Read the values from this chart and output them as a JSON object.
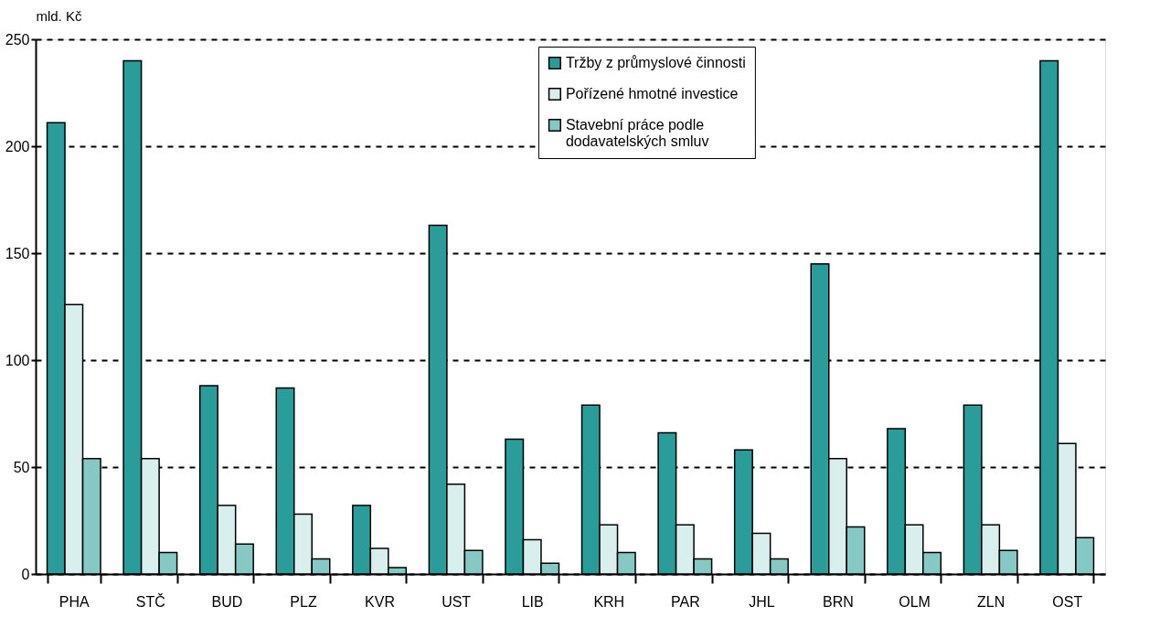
{
  "chart_data": {
    "type": "bar",
    "ylabel": "mld. Kč",
    "categories": [
      "PHA",
      "STČ",
      "BUD",
      "PLZ",
      "KVR",
      "UST",
      "LIB",
      "KRH",
      "PAR",
      "JHL",
      "BRN",
      "OLM",
      "ZLN",
      "OST"
    ],
    "series": [
      {
        "name": "Tržby z průmyslové činnosti",
        "color": "#2a9d9a",
        "values": [
          211,
          240,
          88,
          87,
          32,
          163,
          63,
          79,
          66,
          58,
          145,
          68,
          79,
          240
        ]
      },
      {
        "name": "Pořízené hmotné investice",
        "color": "#d8efed",
        "values": [
          126,
          54,
          32,
          28,
          12,
          42,
          16,
          23,
          23,
          19,
          54,
          23,
          23,
          61
        ]
      },
      {
        "name": "Stavební práce podle dodavatelských smluv",
        "color": "#86c8c4",
        "values": [
          54,
          10,
          14,
          7,
          3,
          11,
          5,
          10,
          7,
          7,
          22,
          10,
          11,
          17
        ]
      }
    ],
    "ylim": [
      0,
      250
    ],
    "yticks": [
      0,
      50,
      100,
      150,
      200,
      250
    ],
    "grid": "y",
    "legend": "top right"
  }
}
